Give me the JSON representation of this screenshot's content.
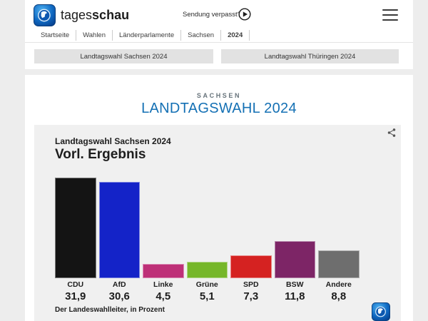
{
  "header": {
    "brand_first": "tages",
    "brand_second": "schau",
    "sendung_verpasst_label": "Sendung verpasst?",
    "breadcrumb": [
      {
        "label": "Startseite",
        "active": false
      },
      {
        "label": "Wahlen",
        "active": false
      },
      {
        "label": "Länderparlamente",
        "active": false
      },
      {
        "label": "Sachsen",
        "active": false
      },
      {
        "label": "2024",
        "active": true
      }
    ],
    "tabs": [
      {
        "label": "Landtagswahl Sachsen 2024"
      },
      {
        "label": "Landtagswahl Thüringen 2024"
      }
    ]
  },
  "page": {
    "eyebrow": "SACHSEN",
    "title": "LANDTAGSWAHL 2024",
    "title_color": "#1470b4"
  },
  "chart": {
    "kicker": "Landtagswahl Sachsen 2024",
    "title": "Vorl. Ergebnis",
    "footnote": "Der Landeswahlleiter, in Prozent"
  },
  "chart_data": {
    "type": "bar",
    "title": "Landtagswahl Sachsen 2024 – Vorl. Ergebnis",
    "categories": [
      "CDU",
      "AfD",
      "Linke",
      "Grüne",
      "SPD",
      "BSW",
      "Andere"
    ],
    "values": [
      31.9,
      30.6,
      4.5,
      5.1,
      7.3,
      11.8,
      8.8
    ],
    "value_labels": [
      "31,9",
      "30,6",
      "4,5",
      "5,1",
      "7,3",
      "11,8",
      "8,8"
    ],
    "bar_colors": [
      "#141414",
      "#1423c8",
      "#be3078",
      "#76b72a",
      "#d52221",
      "#7d2566",
      "#6e6e6e"
    ],
    "ylabel": "Prozent",
    "ylim": [
      0,
      32
    ],
    "grid": false,
    "legend": "none",
    "source": "Der Landeswahlleiter"
  },
  "colors": {
    "page_background": "#ededed",
    "card_background": "#ffffff",
    "chart_background": "#f0f0f0",
    "tab_background": "#e2e2e2",
    "accent_blue": "#1470b4",
    "text_dark": "#1d1d1d"
  }
}
